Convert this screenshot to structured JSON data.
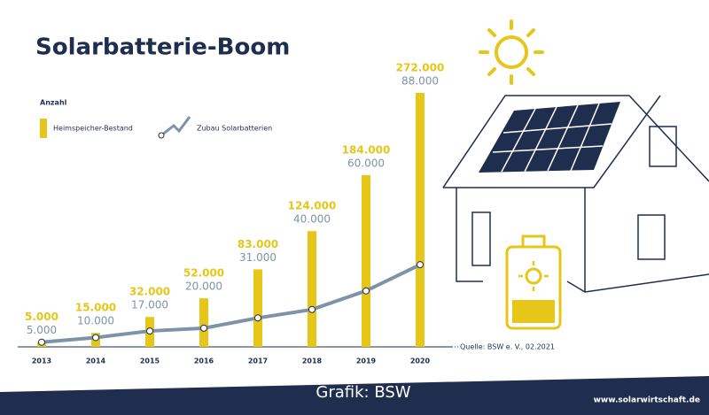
{
  "chart_data": {
    "type": "bar",
    "title": "Solarbatterie-Boom",
    "subtitle": "Anzahl",
    "categories": [
      "2013",
      "2014",
      "2015",
      "2016",
      "2017",
      "2018",
      "2019",
      "2020"
    ],
    "series": [
      {
        "name": "Heimspeicher-Bestand",
        "type": "bar",
        "color": "#e6c619",
        "values": [
          5000,
          15000,
          32000,
          52000,
          83000,
          124000,
          184000,
          272000
        ],
        "value_labels": [
          "5.000",
          "15.000",
          "32.000",
          "52.000",
          "83.000",
          "124.000",
          "184.000",
          "272.000"
        ]
      },
      {
        "name": "Zubau Solarbatterien",
        "type": "line",
        "color": "#7f93a8",
        "values": [
          5000,
          10000,
          17000,
          20000,
          31000,
          40000,
          60000,
          88000
        ],
        "value_labels": [
          "5.000",
          "10.000",
          "17.000",
          "20.000",
          "31.000",
          "40.000",
          "60.000",
          "88.000"
        ]
      }
    ],
    "source": "Quelle: BSW e. V., 02.2021",
    "credit": "Grafik: BSW",
    "website": "www.solarwirtschaft.de"
  }
}
